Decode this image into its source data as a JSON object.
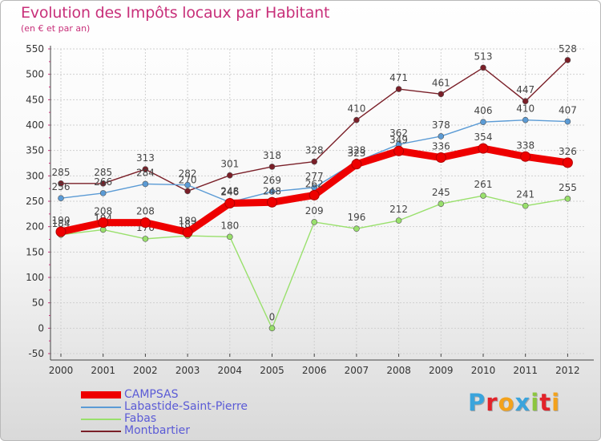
{
  "header": {
    "title": "Evolution des Impôts locaux par Habitant",
    "subtitle": "(en € et par an)"
  },
  "brand": {
    "letters": [
      "P",
      "r",
      "o",
      "x",
      "i",
      "t",
      "i"
    ],
    "colors": [
      "#3aa4dc",
      "#e2232a",
      "#f3a21b",
      "#3aa4dc",
      "#8cc63e",
      "#e2232a",
      "#f3a21b"
    ]
  },
  "chart_data": {
    "type": "line",
    "x": [
      2000,
      2001,
      2002,
      2003,
      2004,
      2005,
      2006,
      2007,
      2008,
      2009,
      2010,
      2011,
      2012
    ],
    "ylim": [
      -50,
      550
    ],
    "yticks": [
      -50,
      0,
      50,
      100,
      150,
      200,
      250,
      300,
      350,
      400,
      450,
      500,
      550
    ],
    "grid": true,
    "legend_position": "bottom-left",
    "series": [
      {
        "name": "CAMPSAS",
        "color": "#ee0000",
        "values": [
          190,
          208,
          208,
          189,
          246,
          248,
          262,
          323,
          349,
          336,
          354,
          338,
          326
        ]
      },
      {
        "name": "Labastide-Saint-Pierre",
        "color": "#5b9bd5",
        "values": [
          256,
          266,
          284,
          282,
          248,
          269,
          277,
          328,
          362,
          378,
          406,
          410,
          407
        ]
      },
      {
        "name": "Fabas",
        "color": "#99e06c",
        "values": [
          184,
          194,
          176,
          182,
          180,
          0,
          209,
          196,
          212,
          245,
          261,
          241,
          255
        ]
      },
      {
        "name": "Montbartier",
        "color": "#7a1f28",
        "values": [
          285,
          285,
          313,
          270,
          301,
          318,
          328,
          410,
          471,
          461,
          513,
          447,
          528
        ]
      }
    ]
  }
}
